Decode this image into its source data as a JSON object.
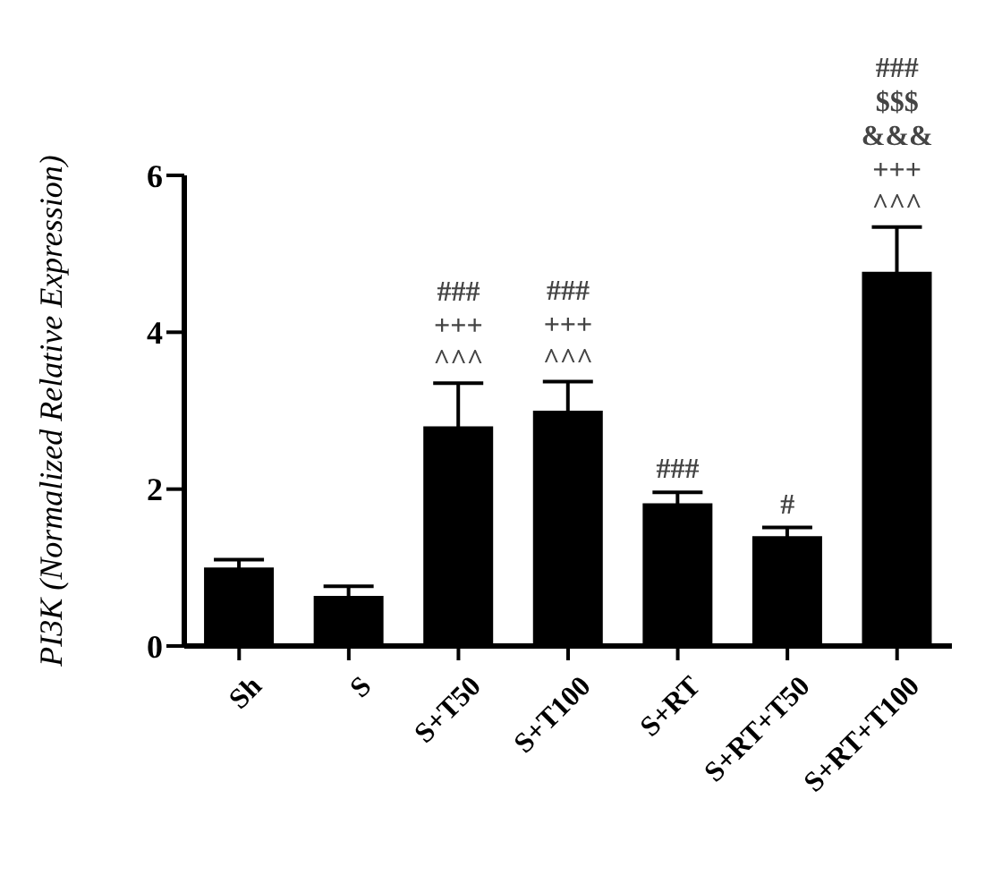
{
  "chart_data": {
    "type": "bar",
    "ylabel": "PI3K (Normalized Relative Expression)",
    "categories": [
      "Sh",
      "S",
      "S+T50",
      "S+T100",
      "S+RT",
      "S+RT+T50",
      "S+RT+T100"
    ],
    "values": [
      1.0,
      0.64,
      2.8,
      3.0,
      1.82,
      1.4,
      4.77
    ],
    "errors": [
      0.1,
      0.12,
      0.55,
      0.37,
      0.14,
      0.11,
      0.57
    ],
    "color": "#000000",
    "ylim": [
      0,
      6
    ],
    "yticks": [
      0,
      2,
      4,
      6
    ],
    "grid": false,
    "annotations": [
      {
        "text": "###\n+++\n^^^",
        "x": "S+T50",
        "y": 3.35
      },
      {
        "text": "###\n+++\n^^^",
        "x": "S+T100",
        "y": 3.37
      },
      {
        "text": "###",
        "x": "S+RT",
        "y": 1.96
      },
      {
        "text": "#",
        "x": "S+RT+T50",
        "y": 1.51
      },
      {
        "text": "###\n$$$\n&&&\n+++\n^^^",
        "x": "S+RT+T100",
        "y": 5.34
      }
    ]
  }
}
